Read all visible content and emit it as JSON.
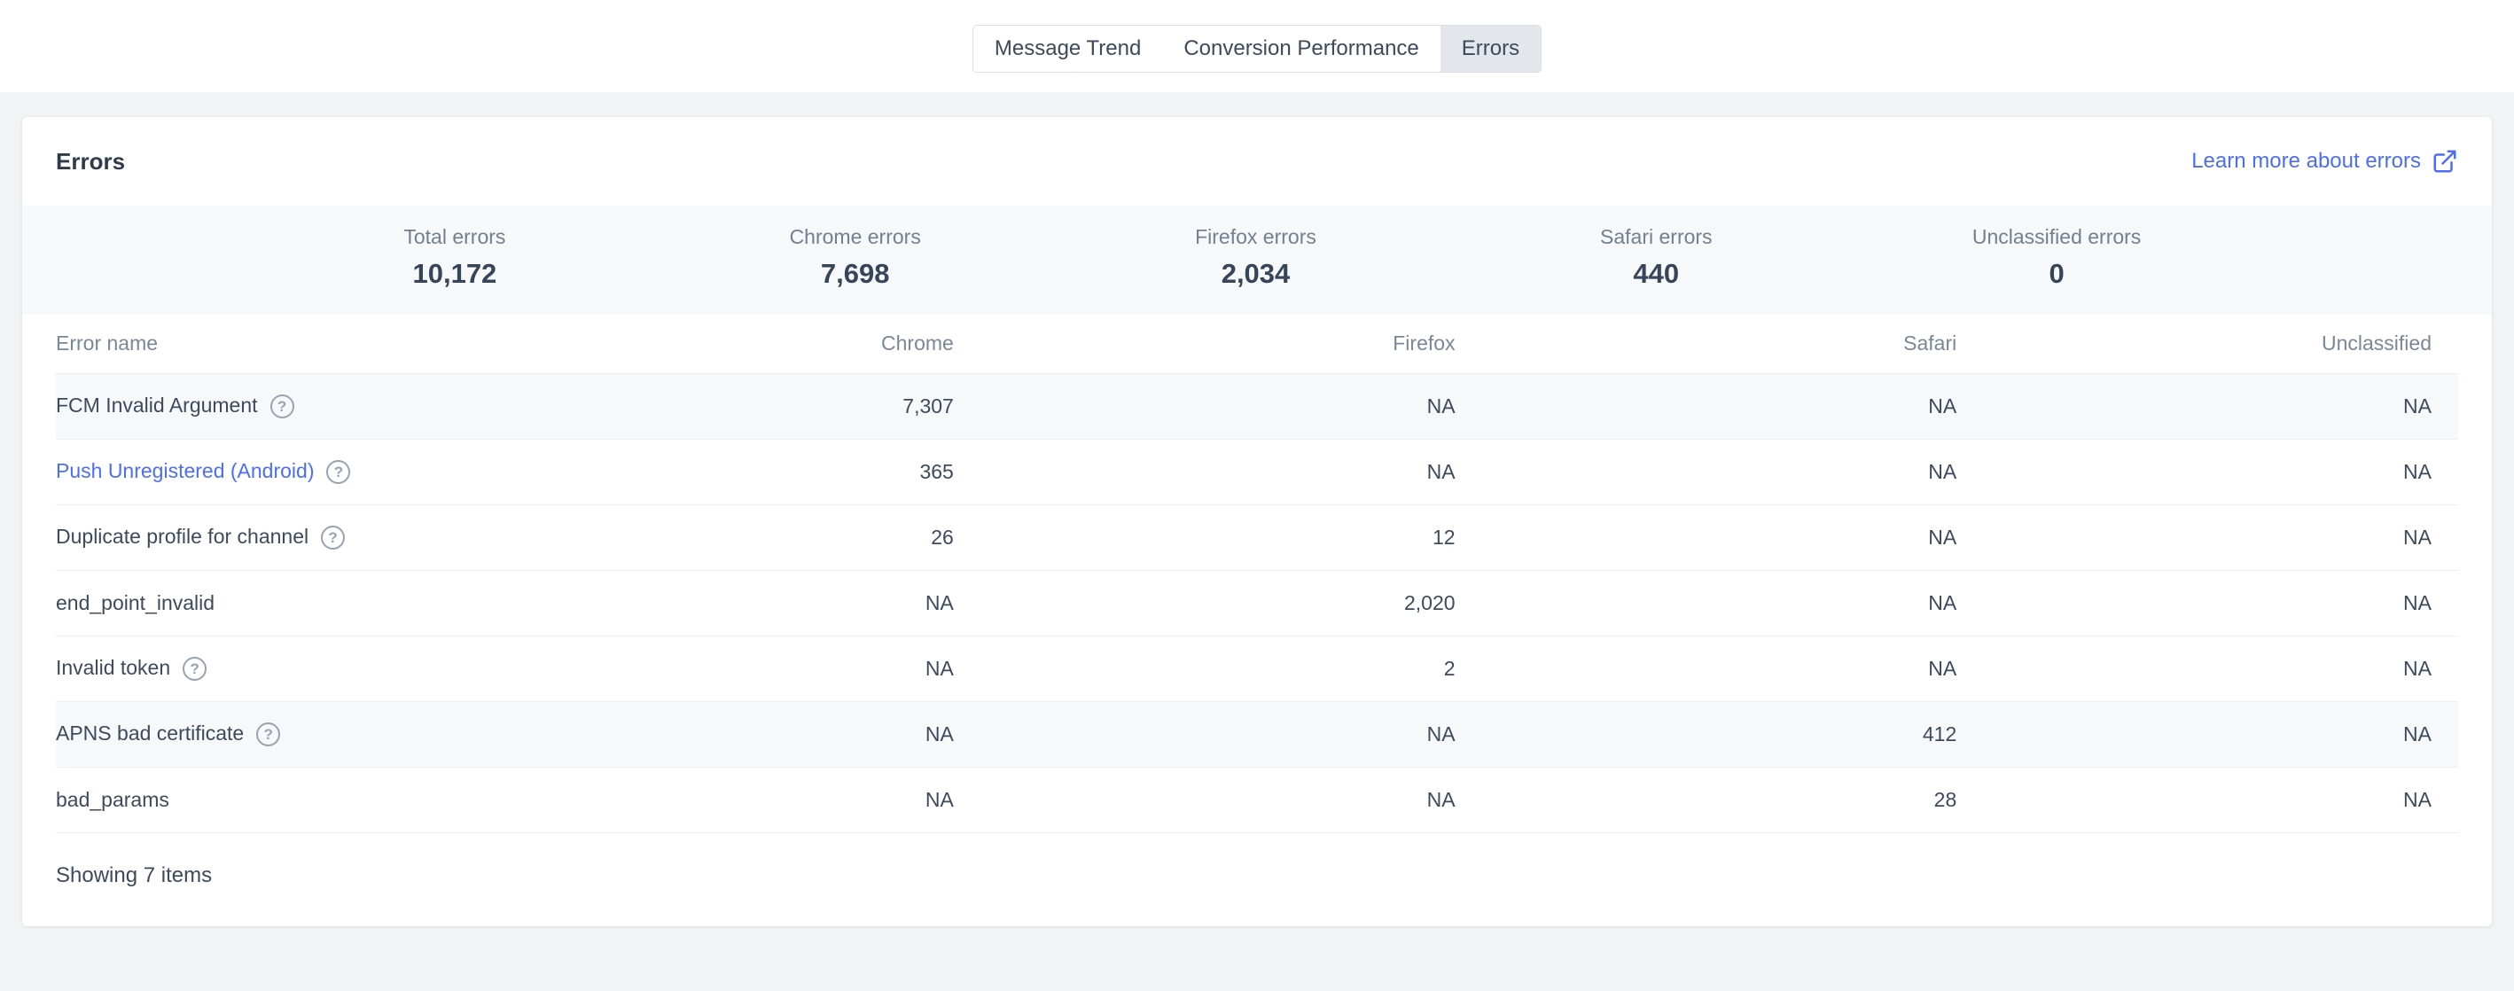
{
  "tabs": [
    {
      "label": "Message Trend",
      "active": false
    },
    {
      "label": "Conversion Performance",
      "active": false
    },
    {
      "label": "Errors",
      "active": true
    }
  ],
  "card": {
    "title": "Errors",
    "learn_more_label": "Learn more about errors",
    "stats": [
      {
        "label": "Total errors",
        "value": "10,172"
      },
      {
        "label": "Chrome errors",
        "value": "7,698"
      },
      {
        "label": "Firefox errors",
        "value": "2,034"
      },
      {
        "label": "Safari errors",
        "value": "440"
      },
      {
        "label": "Unclassified errors",
        "value": "0"
      }
    ],
    "table": {
      "columns": [
        "Error name",
        "Chrome",
        "Firefox",
        "Safari",
        "Unclassified"
      ],
      "rows": [
        {
          "name": "FCM Invalid Argument",
          "help": true,
          "link": false,
          "shaded": true,
          "values": [
            "7,307",
            "NA",
            "NA",
            "NA"
          ]
        },
        {
          "name": "Push Unregistered (Android)",
          "help": true,
          "link": true,
          "shaded": false,
          "values": [
            "365",
            "NA",
            "NA",
            "NA"
          ]
        },
        {
          "name": "Duplicate profile for channel",
          "help": true,
          "link": false,
          "shaded": false,
          "values": [
            "26",
            "12",
            "NA",
            "NA"
          ]
        },
        {
          "name": "end_point_invalid",
          "help": false,
          "link": false,
          "shaded": false,
          "values": [
            "NA",
            "2,020",
            "NA",
            "NA"
          ]
        },
        {
          "name": "Invalid token",
          "help": true,
          "link": false,
          "shaded": false,
          "values": [
            "NA",
            "2",
            "NA",
            "NA"
          ]
        },
        {
          "name": "APNS bad certificate",
          "help": true,
          "link": false,
          "shaded": true,
          "values": [
            "NA",
            "NA",
            "412",
            "NA"
          ]
        },
        {
          "name": "bad_params",
          "help": false,
          "link": false,
          "shaded": false,
          "values": [
            "NA",
            "NA",
            "28",
            "NA"
          ]
        }
      ],
      "footer": "Showing 7 items"
    }
  },
  "icons": {
    "learn_more": "external-link-icon",
    "row_help": "question-circle-icon"
  },
  "colors": {
    "accent_blue": "#4c6ef5",
    "page_background": "#f2f3f5",
    "stats_background": "#f7f8fa",
    "active_tab_background": "#e3e6eb",
    "muted_text": "#73808f",
    "dark_text": "#3d4a5c"
  }
}
